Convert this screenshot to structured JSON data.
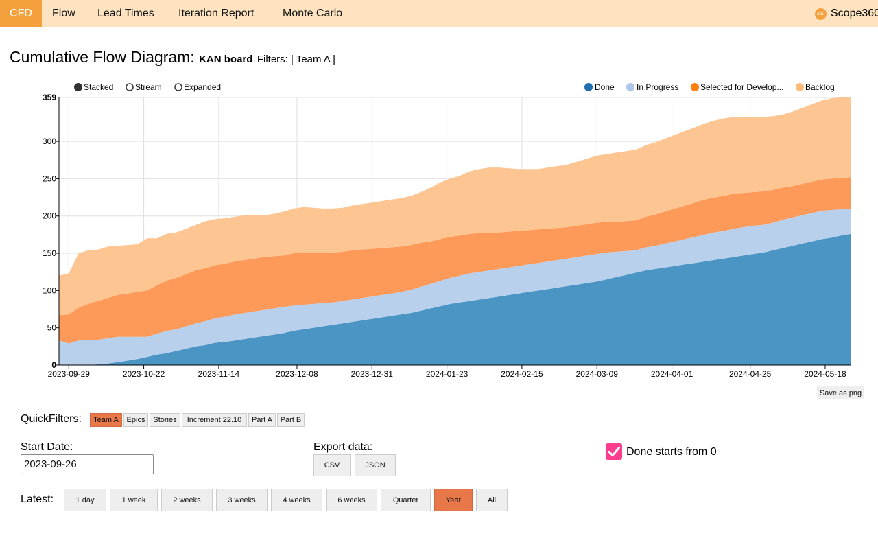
{
  "nav": {
    "tabs": [
      {
        "label": "CFD",
        "active": true
      },
      {
        "label": "Flow"
      },
      {
        "label": "Lead Times"
      },
      {
        "label": "Iteration Report"
      },
      {
        "label": "Monte Carlo"
      }
    ],
    "brand": {
      "icon": "360",
      "name": "Scope360"
    }
  },
  "page": {
    "title": "Cumulative Flow Diagram:",
    "board": "KAN board",
    "filters": "Filters: | Team A |"
  },
  "chart_modes": [
    {
      "label": "Stacked",
      "selected": true
    },
    {
      "label": "Stream",
      "selected": false
    },
    {
      "label": "Expanded",
      "selected": false
    }
  ],
  "chart_data": {
    "type": "area",
    "stacked": true,
    "x": [
      "2023-09-26",
      "2023-09-29",
      "2023-10-02",
      "2023-10-05",
      "2023-10-08",
      "2023-10-11",
      "2023-10-14",
      "2023-10-17",
      "2023-10-20",
      "2023-10-23",
      "2023-10-26",
      "2023-10-29",
      "2023-11-01",
      "2023-11-04",
      "2023-11-07",
      "2023-11-10",
      "2023-11-13",
      "2023-11-16",
      "2023-11-19",
      "2023-11-22",
      "2023-11-25",
      "2023-11-28",
      "2023-12-01",
      "2023-12-04",
      "2023-12-07",
      "2023-12-10",
      "2023-12-13",
      "2023-12-16",
      "2023-12-19",
      "2023-12-22",
      "2023-12-25",
      "2023-12-28",
      "2023-12-31",
      "2024-01-03",
      "2024-01-06",
      "2024-01-09",
      "2024-01-12",
      "2024-01-15",
      "2024-01-18",
      "2024-01-21",
      "2024-01-24",
      "2024-01-27",
      "2024-01-30",
      "2024-02-02",
      "2024-02-05",
      "2024-02-08",
      "2024-02-11",
      "2024-02-14",
      "2024-02-17",
      "2024-02-20",
      "2024-02-23",
      "2024-02-26",
      "2024-02-29",
      "2024-03-03",
      "2024-03-06",
      "2024-03-09",
      "2024-03-12",
      "2024-03-15",
      "2024-03-18",
      "2024-03-21",
      "2024-03-24",
      "2024-03-27",
      "2024-03-30",
      "2024-04-02",
      "2024-04-05",
      "2024-04-08",
      "2024-04-11",
      "2024-04-14",
      "2024-04-17",
      "2024-04-20",
      "2024-04-23",
      "2024-04-26",
      "2024-04-29",
      "2024-05-02",
      "2024-05-05",
      "2024-05-08",
      "2024-05-11",
      "2024-05-14",
      "2024-05-17",
      "2024-05-20",
      "2024-05-23",
      "2024-05-26"
    ],
    "series": [
      {
        "name": "Done",
        "color": "#4a95c4",
        "values": [
          0,
          0,
          0,
          0,
          1,
          2,
          4,
          6,
          8,
          11,
          14,
          16,
          19,
          22,
          25,
          27,
          30,
          31,
          33,
          35,
          37,
          39,
          41,
          43,
          46,
          48,
          50,
          52,
          54,
          56,
          58,
          60,
          62,
          64,
          66,
          68,
          70,
          73,
          76,
          79,
          82,
          84,
          86,
          88,
          90,
          92,
          94,
          96,
          98,
          100,
          102,
          104,
          106,
          108,
          110,
          112,
          115,
          118,
          121,
          124,
          127,
          129,
          131,
          133,
          135,
          137,
          139,
          141,
          143,
          145,
          147,
          149,
          151,
          154,
          157,
          160,
          163,
          166,
          169,
          171,
          174,
          176
        ]
      },
      {
        "name": "In Progress",
        "color": "#b9d0ec",
        "values": [
          33,
          29,
          33,
          34,
          33,
          34,
          34,
          32,
          30,
          27,
          28,
          30,
          29,
          30,
          31,
          32,
          33,
          34,
          35,
          35,
          35,
          35,
          35,
          35,
          34,
          33,
          32,
          31,
          30,
          30,
          30,
          30,
          30,
          30,
          30,
          30,
          31,
          32,
          33,
          34,
          35,
          36,
          37,
          37,
          37,
          37,
          37,
          37,
          37,
          37,
          37,
          37,
          37,
          37,
          37,
          37,
          36,
          34,
          32,
          30,
          31,
          31,
          32,
          33,
          34,
          35,
          36,
          37,
          37,
          38,
          38,
          38,
          37,
          37,
          38,
          38,
          38,
          38,
          38,
          37,
          35,
          33
        ]
      },
      {
        "name": "Selected for Develop...",
        "color": "#fd9a59",
        "values": [
          34,
          39,
          44,
          48,
          52,
          54,
          56,
          58,
          60,
          62,
          65,
          67,
          69,
          70,
          71,
          71,
          71,
          71,
          71,
          71,
          71,
          71,
          70,
          69,
          70,
          70,
          69,
          68,
          67,
          66,
          66,
          65,
          64,
          63,
          62,
          61,
          60,
          59,
          57,
          56,
          55,
          54,
          53,
          52,
          50,
          49,
          48,
          47,
          46,
          45,
          44,
          43,
          42,
          42,
          42,
          42,
          41,
          40,
          40,
          40,
          41,
          42,
          43,
          44,
          45,
          46,
          47,
          47,
          47,
          47,
          46,
          45,
          45,
          44,
          43,
          42,
          42,
          42,
          42,
          42,
          42,
          43
        ]
      },
      {
        "name": "Backlog",
        "color": "#fdc592",
        "values": [
          53,
          55,
          73,
          72,
          69,
          69,
          66,
          65,
          64,
          70,
          63,
          63,
          61,
          61,
          61,
          63,
          62,
          61,
          60,
          60,
          58,
          56,
          57,
          59,
          60,
          61,
          60,
          59,
          59,
          59,
          60,
          61,
          62,
          63,
          64,
          65,
          66,
          68,
          72,
          76,
          78,
          80,
          84,
          86,
          88,
          87,
          85,
          83,
          82,
          81,
          82,
          83,
          84,
          86,
          88,
          90,
          91,
          93,
          94,
          95,
          96,
          97,
          98,
          99,
          100,
          101,
          102,
          103,
          104,
          103,
          102,
          101,
          100,
          99,
          98,
          100,
          102,
          104,
          106,
          108,
          108,
          107
        ]
      }
    ],
    "xtick_labels": [
      "2023-09-29",
      "2023-10-22",
      "2023-11-14",
      "2023-12-08",
      "2023-12-31",
      "2024-01-23",
      "2024-02-15",
      "2024-03-09",
      "2024-04-01",
      "2024-04-25",
      "2024-05-18"
    ],
    "y_ticks": [
      0,
      50,
      100,
      150,
      200,
      250,
      300
    ],
    "y_max_label": "359",
    "ylim": [
      0,
      359
    ],
    "grid": true,
    "legend_position": "top-right"
  },
  "save_png": "Save as png",
  "quickfilters": {
    "label": "QuickFilters:",
    "items": [
      {
        "label": "Team A",
        "active": true
      },
      {
        "label": "Epics"
      },
      {
        "label": "Stories"
      },
      {
        "label": "Increment 22.10"
      },
      {
        "label": "Part A"
      },
      {
        "label": "Part B"
      }
    ]
  },
  "start_date": {
    "label": "Start Date:",
    "value": "2023-09-26"
  },
  "export": {
    "label": "Export data:",
    "csv": "CSV",
    "json": "JSON"
  },
  "done_from_zero": {
    "label": "Done starts from 0",
    "checked": true
  },
  "latest": {
    "label": "Latest:",
    "options": [
      {
        "label": "1 day"
      },
      {
        "label": "1 week"
      },
      {
        "label": "2 weeks"
      },
      {
        "label": "3 weeks"
      },
      {
        "label": "4 weeks"
      },
      {
        "label": "6 weeks"
      },
      {
        "label": "Quarter"
      },
      {
        "label": "Year",
        "active": true
      },
      {
        "label": "All"
      }
    ]
  }
}
